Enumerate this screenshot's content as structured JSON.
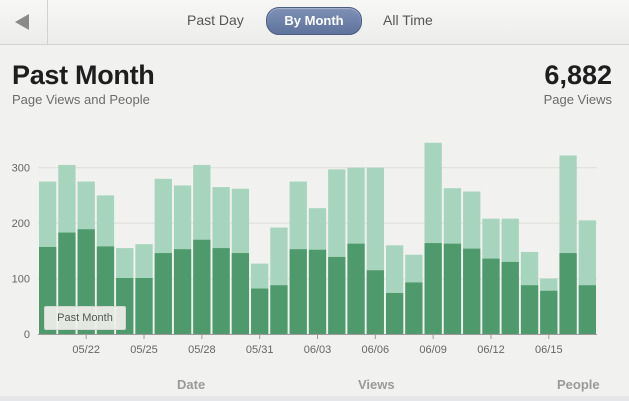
{
  "nav": {
    "back_icon": "back-arrow-icon",
    "tabs": [
      {
        "label": "Past Day",
        "selected": false
      },
      {
        "label": "By Month",
        "selected": true
      },
      {
        "label": "All Time",
        "selected": false
      }
    ]
  },
  "header": {
    "title": "Past Month",
    "subtitle": "Page Views and People",
    "total_value": "6,882",
    "total_label": "Page Views"
  },
  "legend_button": "Past Month",
  "columns": {
    "date": "Date",
    "views": "Views",
    "people": "People"
  },
  "colors": {
    "views_bar": "#a6d4bc",
    "people_bar": "#4f9a6c",
    "selected_tab": "#6a7ea8"
  },
  "chart_data": {
    "type": "bar",
    "ylim": [
      0,
      350
    ],
    "yticks": [
      0,
      100,
      200,
      300
    ],
    "grid": true,
    "xtick_labels": [
      "05/22",
      "05/25",
      "05/28",
      "05/31",
      "06/03",
      "06/06",
      "06/09",
      "06/12",
      "06/15"
    ],
    "xtick_positions": [
      2,
      5,
      8,
      11,
      14,
      17,
      20,
      23,
      26
    ],
    "series": [
      {
        "name": "Views",
        "values": [
          275,
          305,
          275,
          250,
          155,
          162,
          280,
          268,
          305,
          265,
          262,
          127,
          192,
          275,
          227,
          297,
          300,
          300,
          160,
          143,
          345,
          263,
          257,
          208,
          208,
          148,
          100,
          322,
          205
        ]
      },
      {
        "name": "People",
        "values": [
          157,
          183,
          189,
          158,
          101,
          101,
          146,
          153,
          170,
          155,
          146,
          82,
          88,
          153,
          152,
          139,
          163,
          115,
          74,
          93,
          164,
          163,
          154,
          136,
          130,
          88,
          78,
          146,
          88
        ]
      }
    ]
  }
}
